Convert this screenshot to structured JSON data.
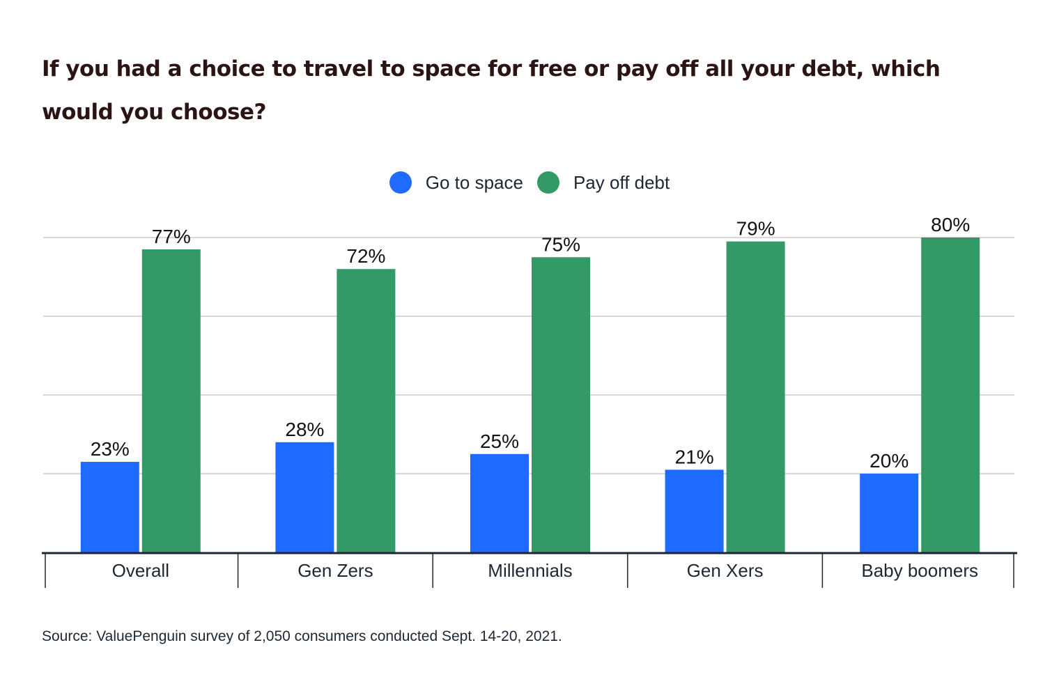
{
  "title": "If you had a choice to travel to space for free or pay off all your debt, which would you choose?",
  "source": "Source: ValuePenguin survey of 2,050 consumers conducted Sept. 14-20, 2021.",
  "colors": {
    "go_to_space": "#1f6bff",
    "pay_off_debt": "#339966",
    "gridline": "#cccccc",
    "axis": "#1d2733",
    "text": "#1d2733",
    "title": "#2b1414"
  },
  "chart_data": {
    "type": "bar",
    "title": "If you had a choice to travel to space for free or pay off all your debt, which would you choose?",
    "categories": [
      "Overall",
      "Gen Zers",
      "Millennials",
      "Gen Xers",
      "Baby boomers"
    ],
    "series": [
      {
        "name": "Go to space",
        "values": [
          23,
          28,
          25,
          21,
          20
        ],
        "color": "#1f6bff"
      },
      {
        "name": "Pay off debt",
        "values": [
          77,
          72,
          75,
          79,
          80
        ],
        "color": "#339966"
      }
    ],
    "value_suffix": "%",
    "xlabel": "",
    "ylabel": "",
    "ylim": [
      0,
      80
    ],
    "gridlines": [
      20,
      40,
      60,
      80
    ],
    "legend_position": "top-center"
  }
}
